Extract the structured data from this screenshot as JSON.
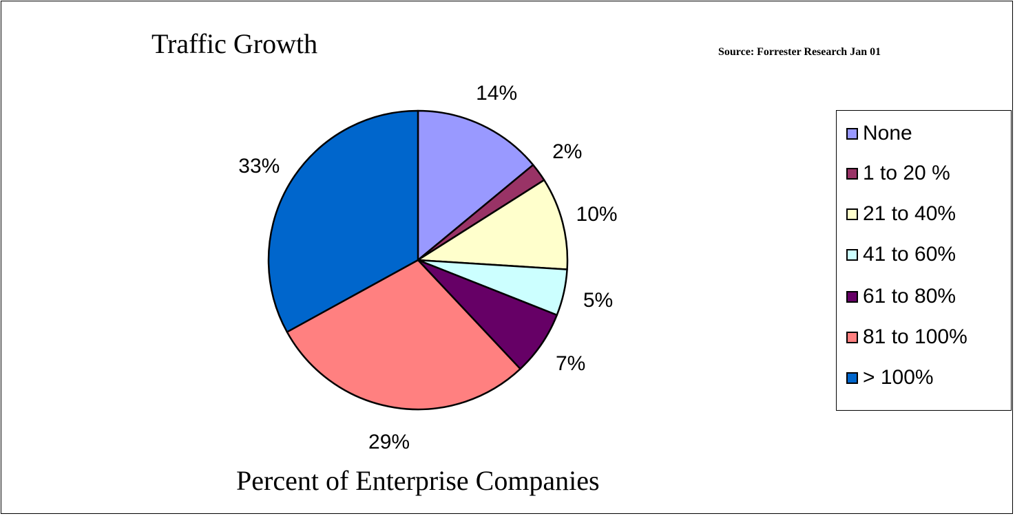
{
  "chart_data": {
    "type": "pie",
    "title": "Traffic Growth",
    "subtitle": "Source: Forrester Research Jan 01",
    "xlabel": "Percent of Enterprise Companies",
    "legend_position": "right",
    "categories": [
      "None",
      "1 to 20 %",
      "21 to 40%",
      "41 to 60%",
      "61 to 80%",
      "81 to 100%",
      "> 100%"
    ],
    "values": [
      14,
      2,
      10,
      5,
      7,
      29,
      33
    ],
    "labels": [
      "14%",
      "2%",
      "10%",
      "5%",
      "7%",
      "29%",
      "33%"
    ],
    "colors": [
      "#9999ff",
      "#993366",
      "#ffffcc",
      "#ccffff",
      "#660066",
      "#ff8080",
      "#0066cc"
    ]
  }
}
